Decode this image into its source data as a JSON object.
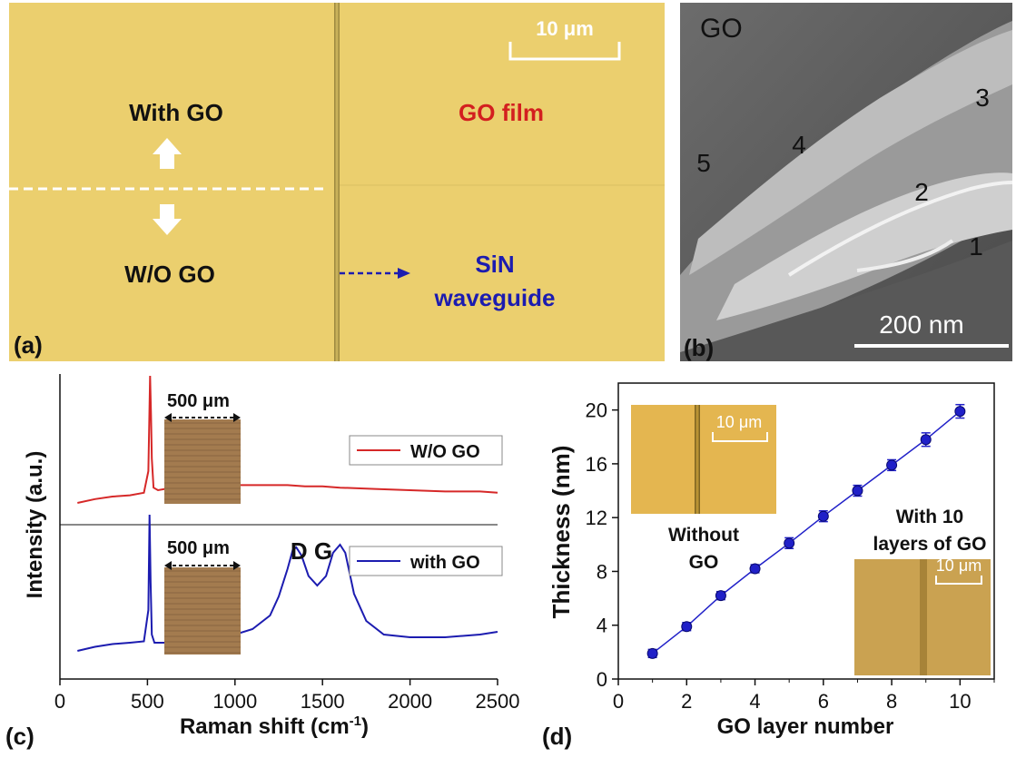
{
  "panel_a": {
    "panel_label": "(a)",
    "scale_bar": "10 μm",
    "with_go": "With GO",
    "wo_go": "W/O GO",
    "go_film": "GO film",
    "sin_line1": "SiN",
    "sin_line2": "waveguide"
  },
  "panel_b": {
    "panel_label": "(b)",
    "corner_label": "GO",
    "layer_labels": [
      "1",
      "2",
      "3",
      "4",
      "5"
    ],
    "scale_bar": "200 nm"
  },
  "panel_c": {
    "panel_label": "(c)",
    "inset_scale_top": "500 μm",
    "inset_scale_bottom": "500 μm",
    "peak_label": "D G",
    "chart_data": {
      "type": "line",
      "xlabel": "Raman shift (cm",
      "xlabel_sup": "-1",
      "xlabel_close": ")",
      "ylabel": "Intensity (a.u.)",
      "xlim": [
        0,
        2500
      ],
      "xticks": [
        "0",
        "500",
        "1000",
        "1500",
        "2000",
        "2500"
      ],
      "legend_placement": "right",
      "series": [
        {
          "name": "W/O GO",
          "color": "#d62828",
          "x": [
            100,
            200,
            300,
            400,
            480,
            505,
            515,
            520,
            525,
            535,
            560,
            600,
            700,
            800,
            900,
            1000,
            1100,
            1200,
            1300,
            1400,
            1500,
            1600,
            1800,
            2000,
            2200,
            2400,
            2500
          ],
          "y": [
            0.0,
            0.03,
            0.05,
            0.06,
            0.08,
            0.25,
            1.0,
            0.7,
            0.35,
            0.12,
            0.1,
            0.11,
            0.12,
            0.13,
            0.13,
            0.14,
            0.14,
            0.14,
            0.14,
            0.13,
            0.13,
            0.12,
            0.11,
            0.1,
            0.09,
            0.09,
            0.08
          ]
        },
        {
          "name": "with GO",
          "color": "#1c1cb0",
          "x": [
            100,
            200,
            300,
            400,
            480,
            505,
            512,
            518,
            525,
            540,
            600,
            700,
            800,
            900,
            950,
            1000,
            1100,
            1200,
            1250,
            1300,
            1330,
            1350,
            1380,
            1420,
            1470,
            1520,
            1560,
            1600,
            1630,
            1680,
            1750,
            1850,
            2000,
            2200,
            2400,
            2500
          ],
          "y": [
            0.0,
            0.03,
            0.05,
            0.06,
            0.07,
            0.3,
            1.0,
            0.5,
            0.12,
            0.06,
            0.06,
            0.06,
            0.07,
            0.08,
            0.12,
            0.12,
            0.16,
            0.26,
            0.4,
            0.6,
            0.74,
            0.76,
            0.7,
            0.55,
            0.48,
            0.55,
            0.72,
            0.78,
            0.72,
            0.42,
            0.22,
            0.12,
            0.1,
            0.1,
            0.12,
            0.14
          ]
        }
      ]
    }
  },
  "panel_d": {
    "panel_label": "(d)",
    "inset_left_scale": "10 μm",
    "inset_left_caption_1": "Without",
    "inset_left_caption_2": "GO",
    "inset_right_caption_1": "With 10",
    "inset_right_caption_2": "layers of GO",
    "inset_right_scale": "10 μm",
    "chart_data": {
      "type": "scatter",
      "xlabel": "GO layer number",
      "ylabel": "Thickness (nm)",
      "xlim": [
        0,
        11
      ],
      "ylim": [
        0,
        22
      ],
      "xticks": [
        0,
        2,
        4,
        6,
        8,
        10
      ],
      "yticks": [
        0,
        4,
        8,
        12,
        16,
        20
      ],
      "series": [
        {
          "name": "",
          "color": "#2020c8",
          "x": [
            1,
            2,
            3,
            4,
            5,
            6,
            7,
            8,
            9,
            10
          ],
          "y": [
            1.9,
            3.9,
            6.2,
            8.2,
            10.1,
            12.1,
            14.0,
            15.9,
            17.8,
            19.9
          ],
          "err": [
            0.3,
            0.3,
            0.3,
            0.3,
            0.4,
            0.4,
            0.4,
            0.4,
            0.5,
            0.5
          ]
        }
      ]
    }
  }
}
